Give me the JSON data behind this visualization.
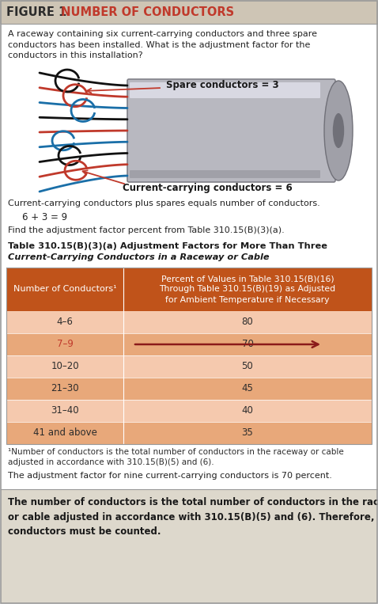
{
  "title_bg": "#cec5b5",
  "title_text_bold": "FIGURE 1",
  "title_text_normal": " NUMBER OF CONDUCTORS",
  "title_color_bold": "#2c2c2c",
  "title_color_normal": "#c0392b",
  "question_text": "A raceway containing six current-carrying conductors and three spare\nconductors has been installed. What is the adjustment factor for the\nconductors in this installation?",
  "spare_label": "Spare conductors = 3",
  "current_label": "Current-carrying conductors = 6",
  "eq_text": "Current-carrying conductors plus spares equals number of conductors.",
  "eq_math": "   6 + 3 = 9",
  "find_text": "Find the adjustment factor percent from Table 310.15(B)(3)(a).",
  "table_title_line1": "Table 310.15(B)(3)(a) Adjustment Factors for More Than Three",
  "table_title_line2": "Current-Carrying Conductors in a Raceway or Cable",
  "col1_header": "Number of Conductors¹",
  "col2_header": "Percent of Values in Table 310.15(B)(16)\nThrough Table 310.15(B)(19) as Adjusted\nfor Ambient Temperature if Necessary",
  "header_bg": "#c0531a",
  "header_text_color": "#ffffff",
  "row_bg_light": "#f5c9ae",
  "row_bg_dark": "#e8a87a",
  "rows": [
    {
      "cond": "4–6",
      "pct": "80",
      "highlight": false
    },
    {
      "cond": "7–9",
      "pct": "70",
      "highlight": true
    },
    {
      "cond": "10–20",
      "pct": "50",
      "highlight": false
    },
    {
      "cond": "21–30",
      "pct": "45",
      "highlight": false
    },
    {
      "cond": "31–40",
      "pct": "40",
      "highlight": false
    },
    {
      "cond": "41 and above",
      "pct": "35",
      "highlight": false
    }
  ],
  "footnote_line1": "¹Number of conductors is the total number of conductors in the raceway or cable",
  "footnote_line2": "adjusted in accordance with 310.15(B)(5) and (6).",
  "conclusion": "The adjustment factor for nine current-carrying conductors is 70 percent.",
  "bottom_box_text": "The number of conductors is the total number of conductors in the raceway\nor cable adjusted in accordance with 310.15(B)(5) and (6). Therefore, spare\nconductors must be counted.",
  "bottom_box_bg": "#ddd8cc",
  "arrow_color": "#8b1a1a",
  "highlight_text_color": "#c0392b",
  "wire_colors": [
    "#111111",
    "#c0392b",
    "#1a6fa8",
    "#111111",
    "#c0392b",
    "#1a6fa8",
    "#111111",
    "#c0392b",
    "#1a6fa8"
  ]
}
